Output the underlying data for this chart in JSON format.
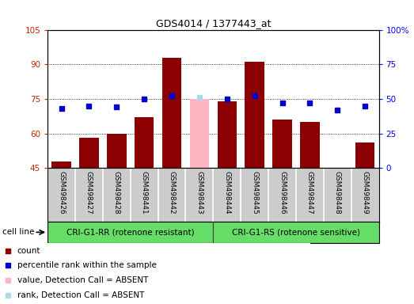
{
  "title": "GDS4014 / 1377443_at",
  "samples": [
    "GSM498426",
    "GSM498427",
    "GSM498428",
    "GSM498441",
    "GSM498442",
    "GSM498443",
    "GSM498444",
    "GSM498445",
    "GSM498446",
    "GSM498447",
    "GSM498448",
    "GSM498449"
  ],
  "count_values": [
    48,
    58,
    60,
    67,
    93,
    null,
    74,
    91,
    66,
    65,
    45,
    56
  ],
  "rank_values": [
    43,
    45,
    44,
    50,
    52,
    null,
    50,
    52,
    47,
    47,
    42,
    45
  ],
  "absent_count": [
    null,
    null,
    null,
    null,
    null,
    75,
    null,
    null,
    null,
    null,
    null,
    null
  ],
  "absent_rank": [
    null,
    null,
    null,
    null,
    null,
    51,
    null,
    null,
    null,
    null,
    null,
    null
  ],
  "ylim_left": [
    45,
    105
  ],
  "ylim_right": [
    0,
    100
  ],
  "yticks_left": [
    45,
    60,
    75,
    90,
    105
  ],
  "yticks_right": [
    0,
    25,
    50,
    75,
    100
  ],
  "ytick_labels_left": [
    "45",
    "60",
    "75",
    "90",
    "105"
  ],
  "ytick_labels_right": [
    "0",
    "25",
    "50",
    "75",
    "100%"
  ],
  "group1_label": "CRI-G1-RR (rotenone resistant)",
  "group2_label": "CRI-G1-RS (rotenone sensitive)",
  "cell_line_label": "cell line",
  "bar_color_dark_red": "#8B0000",
  "bar_color_pink": "#FFB6C1",
  "dot_color_blue": "#0000CD",
  "dot_color_light_blue": "#ADD8E6",
  "group_bg": "#66DD66",
  "plot_bg": "#CCCCCC",
  "legend_items": [
    "count",
    "percentile rank within the sample",
    "value, Detection Call = ABSENT",
    "rank, Detection Call = ABSENT"
  ],
  "legend_colors": [
    "#8B0000",
    "#0000CD",
    "#FFB6C1",
    "#ADD8E6"
  ]
}
